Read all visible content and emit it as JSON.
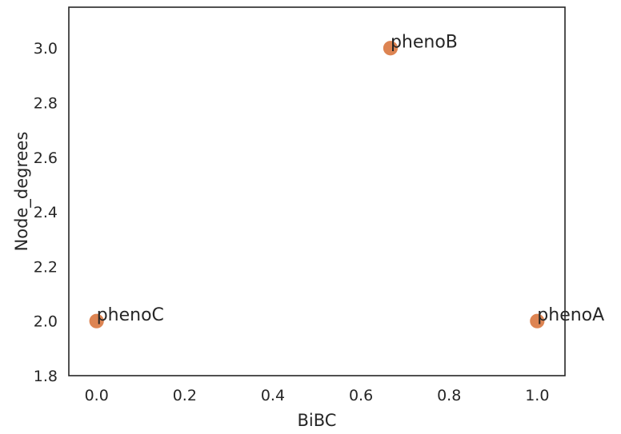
{
  "chart_data": {
    "type": "scatter",
    "title": "",
    "xlabel": "BiBC",
    "ylabel": "Node_degrees",
    "xlim": [
      -0.063,
      1.063
    ],
    "ylim": [
      1.8,
      3.15
    ],
    "xticks": [
      0.0,
      0.2,
      0.4,
      0.6,
      0.8,
      1.0
    ],
    "xtick_labels": [
      "0.0",
      "0.2",
      "0.4",
      "0.6",
      "0.8",
      "1.0"
    ],
    "yticks": [
      1.8,
      2.0,
      2.2,
      2.4,
      2.6,
      2.8,
      3.0
    ],
    "ytick_labels": [
      "1.8",
      "2.0",
      "2.2",
      "2.4",
      "2.6",
      "2.8",
      "3.0"
    ],
    "grid": false,
    "legend": "none",
    "marker_color": "#dd8452",
    "points": [
      {
        "label": "phenoB",
        "x": 0.667,
        "y": 3.0
      },
      {
        "label": "phenoC",
        "x": 0.0,
        "y": 2.0
      },
      {
        "label": "phenoA",
        "x": 1.0,
        "y": 2.0
      }
    ]
  }
}
